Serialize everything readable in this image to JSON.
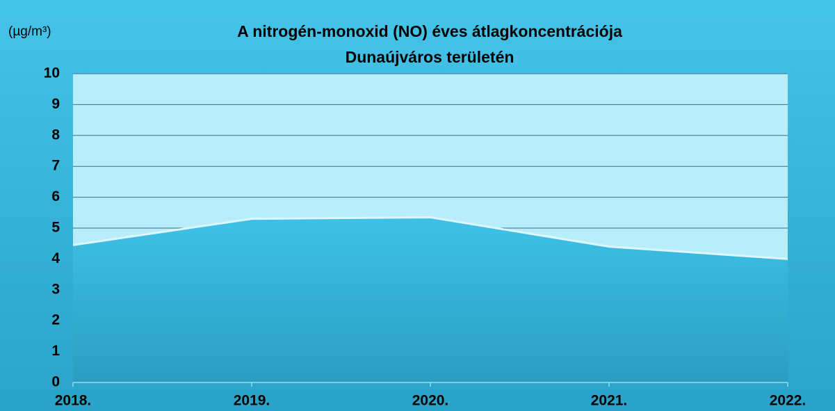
{
  "chart_data": {
    "type": "area",
    "title": [
      "A nitrogén-monoxid (NO) éves átlagkoncentrációja",
      "Dunaújváros területén"
    ],
    "y_label": "(µg/m³)",
    "categories": [
      "2018.",
      "2019.",
      "2020.",
      "2021.",
      "2022."
    ],
    "values": [
      4.45,
      5.3,
      5.35,
      4.4,
      4.0
    ],
    "color": "#3bbbe1",
    "ylim": [
      0,
      10
    ],
    "yticks": [
      0,
      1,
      2,
      3,
      4,
      5,
      6,
      7,
      8,
      9,
      10
    ],
    "grid": true
  }
}
